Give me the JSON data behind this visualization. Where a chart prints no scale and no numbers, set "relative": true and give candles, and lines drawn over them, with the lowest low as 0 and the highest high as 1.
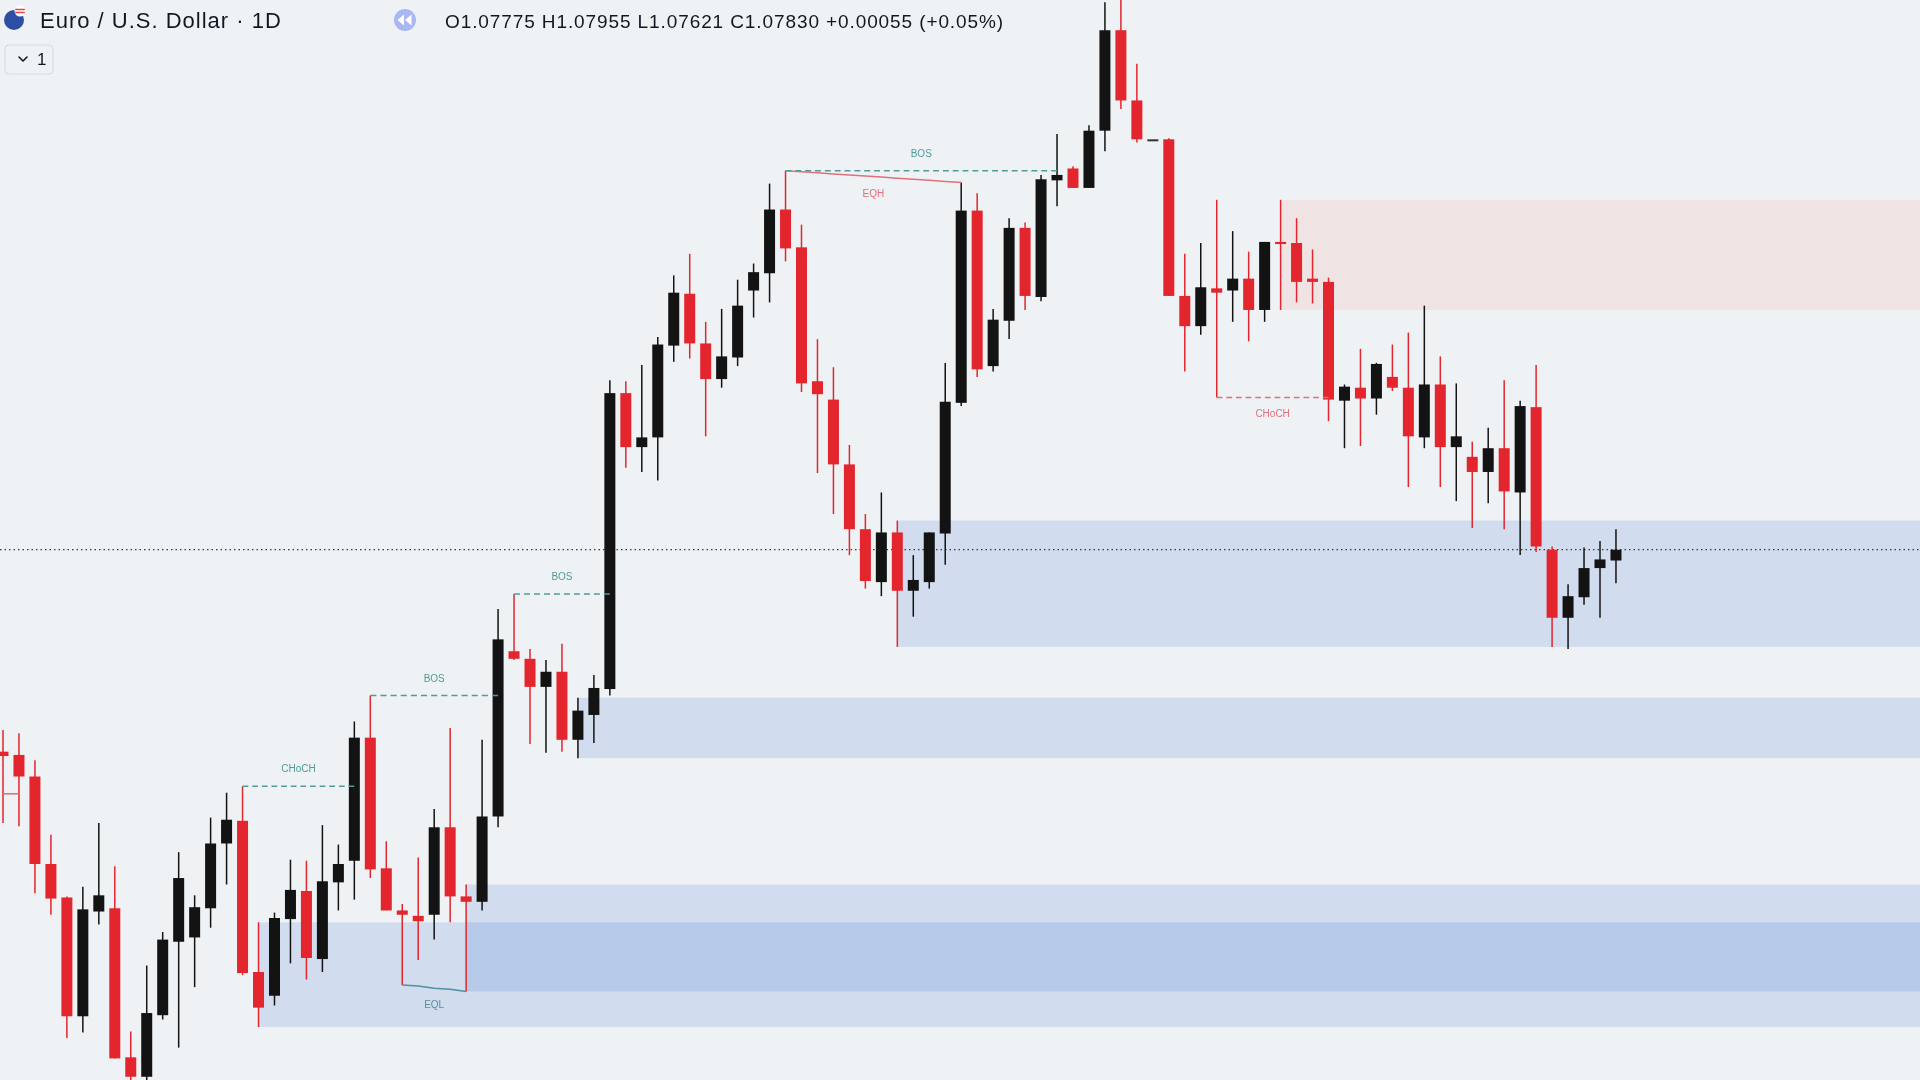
{
  "chart_data": {
    "type": "candlestick",
    "title": "Euro / U.S. Dollar · 1D",
    "subtitle": "O1.07775 H1.07955 L1.07621 C1.07830 +0.00055 (+0.05%)",
    "annotations": [
      "1"
    ],
    "relative": true,
    "categories": [
      null,
      null,
      null,
      null,
      null,
      null,
      null,
      null,
      null,
      null,
      null,
      null,
      null,
      null,
      null,
      null,
      null,
      null,
      null,
      null,
      null,
      null,
      null,
      null,
      null,
      null,
      null,
      null,
      null,
      null,
      null,
      null,
      null,
      null,
      null,
      null,
      null,
      null,
      null,
      null,
      null,
      null,
      null,
      null,
      null,
      null,
      null,
      null,
      null,
      null,
      null,
      null,
      null,
      null,
      null,
      null,
      null,
      null,
      null,
      null,
      null,
      null,
      null,
      null,
      null,
      null,
      null,
      null,
      null,
      null,
      null,
      null,
      null,
      null,
      null,
      null,
      null,
      null,
      null,
      null,
      null,
      null,
      null,
      null,
      null,
      null,
      null,
      null,
      null,
      null,
      null,
      null,
      null,
      null,
      null,
      null,
      null,
      null,
      null,
      null,
      null,
      null
    ],
    "ohlc": [
      [
        0.304,
        0.324,
        0.238,
        0.3
      ],
      [
        0.301,
        0.321,
        0.235,
        0.281
      ],
      [
        0.281,
        0.296,
        0.173,
        0.2
      ],
      [
        0.2,
        0.227,
        0.153,
        0.168
      ],
      [
        0.169,
        0.17,
        0.039,
        0.059
      ],
      [
        0.059,
        0.179,
        0.044,
        0.158
      ],
      [
        0.156,
        0.238,
        0.144,
        0.171
      ],
      [
        0.159,
        0.198,
        0.02,
        0.02
      ],
      [
        0.021,
        0.045,
        0,
        0.003
      ],
      [
        0.003,
        0.106,
        0,
        0.062
      ],
      [
        0.06,
        0.137,
        0.056,
        0.13
      ],
      [
        0.128,
        0.211,
        0.03,
        0.187
      ],
      [
        0.132,
        0.171,
        0.086,
        0.16
      ],
      [
        0.159,
        0.243,
        0.141,
        0.219
      ],
      [
        0.219,
        0.266,
        0.181,
        0.241
      ],
      [
        0.24,
        0.272,
        0.097,
        0.099
      ],
      [
        0.1,
        0.146,
        0.049,
        0.067
      ],
      [
        0.078,
        0.155,
        0.069,
        0.15
      ],
      [
        0.149,
        0.204,
        0.108,
        0.176
      ],
      [
        0.175,
        0.203,
        0.093,
        0.113
      ],
      [
        0.112,
        0.236,
        0.1,
        0.184
      ],
      [
        0.183,
        0.218,
        0.157,
        0.2
      ],
      [
        0.203,
        0.332,
        0.167,
        0.317
      ],
      [
        0.317,
        0.356,
        0.187,
        0.195
      ],
      [
        0.196,
        0.221,
        0.157,
        0.157
      ],
      [
        0.157,
        0.163,
        0.088,
        0.153
      ],
      [
        0.152,
        0.206,
        0.111,
        0.147
      ],
      [
        0.153,
        0.251,
        0.13,
        0.234
      ],
      [
        0.234,
        0.326,
        0.146,
        0.17
      ],
      [
        0.17,
        0.181,
        0.082,
        0.165
      ],
      [
        0.165,
        0.315,
        0.157,
        0.244
      ],
      [
        0.244,
        0.436,
        0.234,
        0.408
      ],
      [
        0.397,
        0.45,
        0.389,
        0.39
      ],
      [
        0.39,
        0.399,
        0.311,
        0.364
      ],
      [
        0.364,
        0.389,
        0.303,
        0.378
      ],
      [
        0.378,
        0.404,
        0.304,
        0.315
      ],
      [
        0.315,
        0.354,
        0.298,
        0.342
      ],
      [
        0.338,
        0.375,
        0.312,
        0.363
      ],
      [
        0.362,
        0.648,
        0.356,
        0.636
      ],
      [
        0.636,
        0.647,
        0.567,
        0.586
      ],
      [
        0.586,
        0.662,
        0.563,
        0.595
      ],
      [
        0.595,
        0.688,
        0.555,
        0.681
      ],
      [
        0.68,
        0.745,
        0.665,
        0.729
      ],
      [
        0.728,
        0.765,
        0.668,
        0.682
      ],
      [
        0.682,
        0.702,
        0.596,
        0.649
      ],
      [
        0.649,
        0.714,
        0.641,
        0.67
      ],
      [
        0.669,
        0.741,
        0.661,
        0.717
      ],
      [
        0.731,
        0.756,
        0.706,
        0.748
      ],
      [
        0.747,
        0.83,
        0.72,
        0.806
      ],
      [
        0.806,
        0.842,
        0.758,
        0.77
      ],
      [
        0.771,
        0.792,
        0.637,
        0.645
      ],
      [
        0.647,
        0.686,
        0.562,
        0.635
      ],
      [
        0.63,
        0.66,
        0.524,
        0.57
      ],
      [
        0.57,
        0.588,
        0.486,
        0.51
      ],
      [
        0.51,
        0.524,
        0.455,
        0.462
      ],
      [
        0.461,
        0.544,
        0.448,
        0.507
      ],
      [
        0.507,
        0.518,
        0.401,
        0.453
      ],
      [
        0.453,
        0.486,
        0.429,
        0.463
      ],
      [
        0.461,
        0.507,
        0.455,
        0.507
      ],
      [
        0.506,
        0.664,
        0.477,
        0.628
      ],
      [
        0.627,
        0.831,
        0.624,
        0.805
      ],
      [
        0.805,
        0.821,
        0.651,
        0.658
      ],
      [
        0.661,
        0.714,
        0.656,
        0.704
      ],
      [
        0.703,
        0.798,
        0.686,
        0.789
      ],
      [
        0.789,
        0.794,
        0.713,
        0.726
      ],
      [
        0.725,
        0.838,
        0.721,
        0.834
      ],
      [
        0.833,
        0.876,
        0.809,
        0.838
      ],
      [
        0.844,
        0.846,
        0.826,
        0.826
      ],
      [
        0.826,
        0.884,
        0.826,
        0.879
      ],
      [
        0.879,
        0.998,
        0.86,
        0.972
      ],
      [
        0.972,
        1,
        0.899,
        0.907
      ],
      [
        0.907,
        0.941,
        0.868,
        0.871
      ],
      [
        0.871,
        0.871,
        0.871,
        0.871
      ],
      [
        0.871,
        0.872,
        0.726,
        0.726
      ],
      [
        0.726,
        0.765,
        0.656,
        0.698
      ],
      [
        0.698,
        0.775,
        0.69,
        0.734
      ],
      [
        0.733,
        0.815,
        0.632,
        0.729
      ],
      [
        0.731,
        0.786,
        0.702,
        0.742
      ],
      [
        0.742,
        0.767,
        0.684,
        0.713
      ],
      [
        0.713,
        0.776,
        0.702,
        0.776
      ],
      [
        0.776,
        0.815,
        0.713,
        0.774
      ],
      [
        0.775,
        0.798,
        0.72,
        0.739
      ],
      [
        0.742,
        0.769,
        0.719,
        0.739
      ],
      [
        0.739,
        0.743,
        0.61,
        0.63
      ],
      [
        0.629,
        0.644,
        0.585,
        0.642
      ],
      [
        0.641,
        0.677,
        0.587,
        0.631
      ],
      [
        0.631,
        0.664,
        0.616,
        0.663
      ],
      [
        0.651,
        0.681,
        0.638,
        0.641
      ],
      [
        0.641,
        0.692,
        0.549,
        0.596
      ],
      [
        0.595,
        0.717,
        0.585,
        0.644
      ],
      [
        0.644,
        0.67,
        0.549,
        0.586
      ],
      [
        0.586,
        0.645,
        0.536,
        0.596
      ],
      [
        0.577,
        0.591,
        0.511,
        0.563
      ],
      [
        0.563,
        0.604,
        0.534,
        0.585
      ],
      [
        0.585,
        0.648,
        0.51,
        0.545
      ],
      [
        0.544,
        0.629,
        0.486,
        0.624
      ],
      [
        0.623,
        0.662,
        0.489,
        0.494
      ],
      [
        0.491,
        0.494,
        0.401,
        0.428
      ],
      [
        0.428,
        0.459,
        0.399,
        0.448
      ],
      [
        0.447,
        0.493,
        0.44,
        0.474
      ],
      [
        0.474,
        0.499,
        0.428,
        0.482
      ],
      [
        0.481,
        0.51,
        0.46,
        0.491
      ]
    ],
    "colors": [
      "#e3252d",
      "#e3252d",
      "#e3252d",
      "#e3252d",
      "#e3252d",
      "#131313",
      "#131313",
      "#e3252d",
      "#e3252d",
      "#131313",
      "#131313",
      "#131313",
      "#131313",
      "#131313",
      "#131313",
      "#e3252d",
      "#e3252d",
      "#131313",
      "#131313",
      "#e3252d",
      "#131313",
      "#131313",
      "#131313",
      "#e3252d",
      "#e3252d",
      "#e3252d",
      "#e3252d",
      "#131313",
      "#e3252d",
      "#e3252d",
      "#131313",
      "#131313",
      "#e3252d",
      "#e3252d",
      "#131313",
      "#e3252d",
      "#131313",
      "#131313",
      "#131313",
      "#e3252d",
      "#131313",
      "#131313",
      "#131313",
      "#e3252d",
      "#e3252d",
      "#131313",
      "#131313",
      "#131313",
      "#131313",
      "#e3252d",
      "#e3252d",
      "#e3252d",
      "#e3252d",
      "#e3252d",
      "#e3252d",
      "#131313",
      "#e3252d",
      "#131313",
      "#131313",
      "#131313",
      "#131313",
      "#e3252d",
      "#131313",
      "#131313",
      "#e3252d",
      "#131313",
      "#131313",
      "#e3252d",
      "#131313",
      "#131313",
      "#e3252d",
      "#e3252d",
      "#333333",
      "#e3252d",
      "#e3252d",
      "#131313",
      "#e3252d",
      "#131313",
      "#e3252d",
      "#131313",
      "#e3252d",
      "#e3252d",
      "#e3252d",
      "#e3252d",
      "#131313",
      "#e3252d",
      "#131313",
      "#e3252d",
      "#e3252d",
      "#131313",
      "#e3252d",
      "#131313",
      "#e3252d",
      "#131313",
      "#e3252d",
      "#131313",
      "#e3252d",
      "#e3252d",
      "#131313",
      "#131313",
      "#131313",
      "#131313"
    ],
    "series": [
      {
        "type": "line",
        "name": "CHoCH",
        "color": "#4f9c98",
        "line_style": "dashed",
        "values": [
          null,
          null,
          null,
          null,
          null,
          null,
          null,
          null,
          null,
          null,
          null,
          null,
          null,
          null,
          null,
          0.272,
          0.272,
          0.272,
          0.272,
          0.272,
          0.272,
          0.272,
          0.272,
          null,
          null,
          null,
          null,
          null,
          null,
          null,
          null,
          null,
          null,
          null,
          null,
          null,
          null,
          null,
          null,
          null,
          null,
          null,
          null,
          null,
          null,
          null,
          null,
          null,
          null,
          null,
          null,
          null,
          null,
          null,
          null,
          null,
          null,
          null,
          null,
          null,
          null,
          null,
          null,
          null,
          null,
          null,
          null,
          null,
          null,
          null,
          null,
          null,
          null,
          null,
          null,
          null,
          null,
          null,
          null,
          null,
          null,
          null,
          null,
          null,
          null,
          null,
          null,
          null,
          null,
          null,
          null,
          null,
          null,
          null,
          null,
          null,
          null,
          null,
          null,
          null,
          null,
          null
        ]
      },
      {
        "type": "line",
        "name": "BOS",
        "color": "#4f9c98",
        "line_style": "dashed",
        "values": [
          null,
          null,
          null,
          null,
          null,
          null,
          null,
          null,
          null,
          null,
          null,
          null,
          null,
          null,
          null,
          null,
          null,
          null,
          null,
          null,
          null,
          null,
          null,
          0.356,
          0.356,
          0.356,
          0.356,
          0.356,
          0.356,
          0.356,
          0.356,
          0.356,
          null,
          null,
          null,
          null,
          null,
          null,
          null,
          null,
          null,
          null,
          null,
          null,
          null,
          null,
          null,
          null,
          null,
          null,
          null,
          null,
          null,
          null,
          null,
          null,
          null,
          null,
          null,
          null,
          null,
          null,
          null,
          null,
          null,
          null,
          null,
          null,
          null,
          null,
          null,
          null,
          null,
          null,
          null,
          null,
          null,
          null,
          null,
          null,
          null,
          null,
          null,
          null,
          null,
          null,
          null,
          null,
          null,
          null,
          null,
          null,
          null,
          null,
          null,
          null,
          null,
          null,
          null,
          null,
          null,
          null
        ]
      },
      {
        "type": "line",
        "name": "BOS",
        "color": "#4f9c98",
        "line_style": "dashed",
        "values": [
          null,
          null,
          null,
          null,
          null,
          null,
          null,
          null,
          null,
          null,
          null,
          null,
          null,
          null,
          null,
          null,
          null,
          null,
          null,
          null,
          null,
          null,
          null,
          null,
          null,
          null,
          null,
          null,
          null,
          null,
          null,
          null,
          0.45,
          0.45,
          0.45,
          0.45,
          0.45,
          0.45,
          0.45,
          null,
          null,
          null,
          null,
          null,
          null,
          null,
          null,
          null,
          null,
          null,
          null,
          null,
          null,
          null,
          null,
          null,
          null,
          null,
          null,
          null,
          null,
          null,
          null,
          null,
          null,
          null,
          null,
          null,
          null,
          null,
          null,
          null,
          null,
          null,
          null,
          null,
          null,
          null,
          null,
          null,
          null,
          null,
          null,
          null,
          null,
          null,
          null,
          null,
          null,
          null,
          null,
          null,
          null,
          null,
          null,
          null,
          null,
          null,
          null,
          null,
          null,
          null
        ]
      },
      {
        "type": "line",
        "name": "BOS",
        "color": "#4f9c98",
        "line_style": "dashed",
        "values": [
          null,
          null,
          null,
          null,
          null,
          null,
          null,
          null,
          null,
          null,
          null,
          null,
          null,
          null,
          null,
          null,
          null,
          null,
          null,
          null,
          null,
          null,
          null,
          null,
          null,
          null,
          null,
          null,
          null,
          null,
          null,
          null,
          null,
          null,
          null,
          null,
          null,
          null,
          null,
          null,
          null,
          null,
          null,
          null,
          null,
          null,
          null,
          null,
          null,
          0.842,
          0.842,
          0.842,
          0.842,
          0.842,
          0.842,
          0.842,
          0.842,
          0.842,
          0.842,
          0.842,
          0.842,
          0.842,
          0.842,
          0.842,
          0.842,
          0.842,
          0.842,
          null,
          null,
          null,
          null,
          null,
          null,
          null,
          null,
          null,
          null,
          null,
          null,
          null,
          null,
          null,
          null,
          null,
          null,
          null,
          null,
          null,
          null,
          null,
          null,
          null,
          null,
          null,
          null,
          null,
          null,
          null,
          null,
          null,
          null,
          null
        ]
      },
      {
        "type": "line",
        "name": "EQH",
        "color": "#e0707a",
        "line_style": "solid",
        "values": [
          null,
          null,
          null,
          null,
          null,
          null,
          null,
          null,
          null,
          null,
          null,
          null,
          null,
          null,
          null,
          null,
          null,
          null,
          null,
          null,
          null,
          null,
          null,
          null,
          null,
          null,
          null,
          null,
          null,
          null,
          null,
          null,
          null,
          null,
          null,
          null,
          null,
          null,
          null,
          null,
          null,
          null,
          null,
          null,
          null,
          null,
          null,
          null,
          null,
          0.842,
          0.841,
          0.84,
          0.839,
          0.838,
          0.837,
          0.836,
          0.835,
          0.834,
          0.833,
          0.832,
          0.831,
          null,
          null,
          null,
          null,
          null,
          null,
          null,
          null,
          null,
          null,
          null,
          null,
          null,
          null,
          null,
          null,
          null,
          null,
          null,
          null,
          null,
          null,
          null,
          null,
          null,
          null,
          null,
          null,
          null,
          null,
          null,
          null,
          null,
          null,
          null,
          null,
          null,
          null,
          null,
          null,
          null
        ]
      },
      {
        "type": "line",
        "name": "EQL",
        "color": "#4f90a2",
        "line_style": "solid",
        "values": [
          null,
          null,
          null,
          null,
          null,
          null,
          null,
          null,
          null,
          null,
          null,
          null,
          null,
          null,
          null,
          null,
          null,
          null,
          null,
          null,
          null,
          null,
          null,
          null,
          null,
          0.088,
          0.087,
          0.085,
          0.084,
          0.082,
          null,
          null,
          null,
          null,
          null,
          null,
          null,
          null,
          null,
          null,
          null,
          null,
          null,
          null,
          null,
          null,
          null,
          null,
          null,
          null,
          null,
          null,
          null,
          null,
          null,
          null,
          null,
          null,
          null,
          null,
          null,
          null,
          null,
          null,
          null,
          null,
          null,
          null,
          null,
          null,
          null,
          null,
          null,
          null,
          null,
          null,
          null,
          null,
          null,
          null,
          null,
          null,
          null,
          null,
          null,
          null,
          null,
          null,
          null,
          null,
          null,
          null,
          null,
          null,
          null,
          null,
          null,
          null,
          null,
          null,
          null,
          null
        ]
      },
      {
        "type": "line",
        "name": "CHoCH",
        "color": "#e0707a",
        "line_style": "dashed",
        "values": [
          null,
          null,
          null,
          null,
          null,
          null,
          null,
          null,
          null,
          null,
          null,
          null,
          null,
          null,
          null,
          null,
          null,
          null,
          null,
          null,
          null,
          null,
          null,
          null,
          null,
          null,
          null,
          null,
          null,
          null,
          null,
          null,
          null,
          null,
          null,
          null,
          null,
          null,
          null,
          null,
          null,
          null,
          null,
          null,
          null,
          null,
          null,
          null,
          null,
          null,
          null,
          null,
          null,
          null,
          null,
          null,
          null,
          null,
          null,
          null,
          null,
          null,
          null,
          null,
          null,
          null,
          null,
          null,
          null,
          null,
          null,
          null,
          null,
          null,
          null,
          null,
          0.632,
          0.632,
          0.632,
          0.632,
          0.632,
          0.632,
          0.632,
          0.632,
          null,
          null,
          null,
          null,
          null,
          null,
          null,
          null,
          null,
          null,
          null,
          null,
          null,
          null,
          null,
          null,
          null,
          null
        ]
      },
      {
        "type": "line",
        "color": "#e06a70",
        "line_style": "solid",
        "values": [
          0.265,
          0.265,
          null,
          null,
          null,
          null,
          null,
          null,
          null,
          null,
          null,
          null,
          null,
          null,
          null,
          null,
          null,
          null,
          null,
          null,
          null,
          null,
          null,
          null,
          null,
          null,
          null,
          null,
          null,
          null,
          null,
          null,
          null,
          null,
          null,
          null,
          null,
          null,
          null,
          null,
          null,
          null,
          null,
          null,
          null,
          null,
          null,
          null,
          null,
          null,
          null,
          null,
          null,
          null,
          null,
          null,
          null,
          null,
          null,
          null,
          null,
          null,
          null,
          null,
          null,
          null,
          null,
          null,
          null,
          null,
          null,
          null,
          null,
          null,
          null,
          null,
          null,
          null,
          null,
          null,
          null,
          null,
          null,
          null,
          null,
          null,
          null,
          null,
          null,
          null,
          null,
          null,
          null,
          null,
          null,
          null,
          null,
          null,
          null,
          null,
          null,
          null
        ]
      }
    ],
    "bands": [
      {
        "axis": "y",
        "from": 0.713,
        "to": 0.815,
        "color": "#fff0ee"
      },
      {
        "axis": "y",
        "from": 0.401,
        "to": 0.518,
        "color": "#dfe9f9"
      },
      {
        "axis": "y",
        "from": 0.298,
        "to": 0.354,
        "color": "#dfe9f9"
      },
      {
        "axis": "y",
        "from": 0.049,
        "to": 0.146,
        "color": "#dfe9f9"
      },
      {
        "axis": "y",
        "from": 0.082,
        "to": 0.181,
        "color": "#dfe9f9"
      }
    ],
    "ref_lines": [
      {
        "axis": "y",
        "value": 0.491,
        "color": "#3a3a3a",
        "line_style": "dotted"
      }
    ]
  }
}
